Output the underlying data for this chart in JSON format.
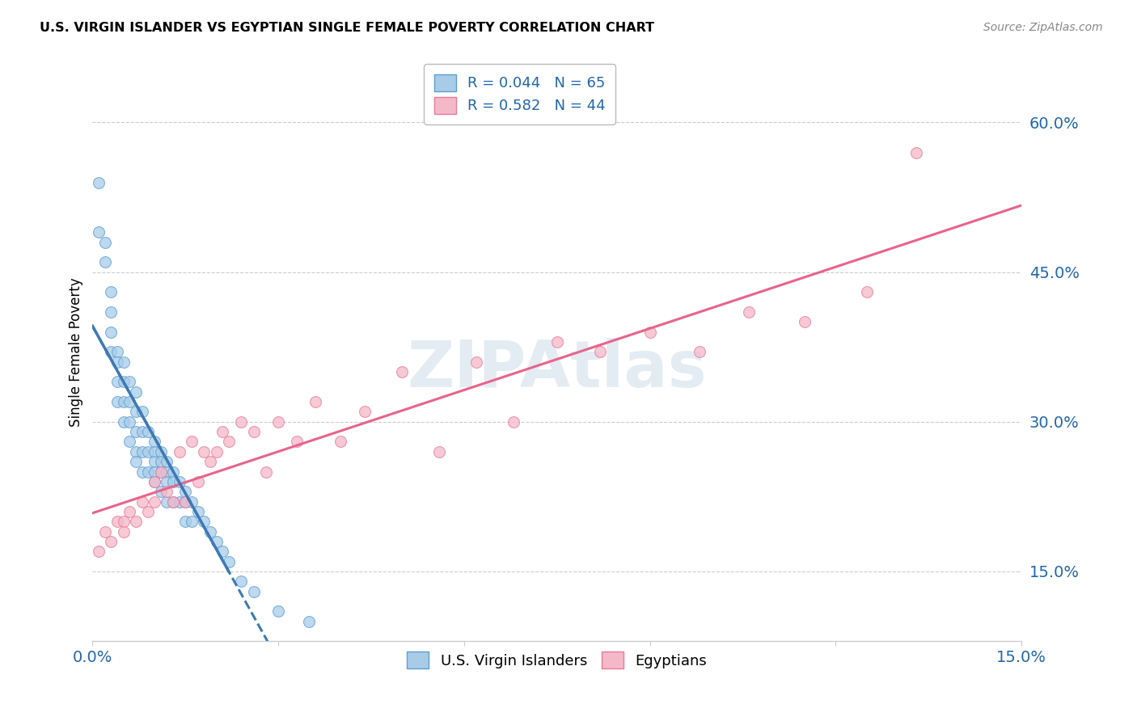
{
  "title": "U.S. VIRGIN ISLANDER VS EGYPTIAN SINGLE FEMALE POVERTY CORRELATION CHART",
  "source": "Source: ZipAtlas.com",
  "ylabel": "Single Female Poverty",
  "ytick_values": [
    0.15,
    0.3,
    0.45,
    0.6
  ],
  "ytick_labels": [
    "15.0%",
    "30.0%",
    "45.0%",
    "60.0%"
  ],
  "xlim": [
    0.0,
    0.15
  ],
  "ylim": [
    0.08,
    0.66
  ],
  "watermark": "ZIPAtlas",
  "legend_r1": "R = 0.044",
  "legend_n1": "N = 65",
  "legend_r2": "R = 0.582",
  "legend_n2": "N = 44",
  "color_blue_fill": "#a8cce8",
  "color_blue_edge": "#5b9fd4",
  "color_pink_fill": "#f5b8c8",
  "color_pink_edge": "#e87aa0",
  "color_blue_line": "#3d7ab5",
  "color_pink_line": "#e8648c",
  "color_blue_text": "#2166ac",
  "color_grid": "#cccccc",
  "blue_x": [
    0.001,
    0.001,
    0.002,
    0.002,
    0.003,
    0.003,
    0.003,
    0.003,
    0.004,
    0.004,
    0.004,
    0.004,
    0.005,
    0.005,
    0.005,
    0.005,
    0.006,
    0.006,
    0.006,
    0.006,
    0.007,
    0.007,
    0.007,
    0.007,
    0.007,
    0.008,
    0.008,
    0.008,
    0.008,
    0.009,
    0.009,
    0.009,
    0.01,
    0.01,
    0.01,
    0.01,
    0.01,
    0.011,
    0.011,
    0.011,
    0.011,
    0.012,
    0.012,
    0.012,
    0.012,
    0.013,
    0.013,
    0.013,
    0.014,
    0.014,
    0.015,
    0.015,
    0.015,
    0.016,
    0.016,
    0.017,
    0.018,
    0.019,
    0.02,
    0.021,
    0.022,
    0.024,
    0.026,
    0.03,
    0.035
  ],
  "blue_y": [
    0.54,
    0.49,
    0.48,
    0.46,
    0.43,
    0.41,
    0.39,
    0.37,
    0.37,
    0.36,
    0.34,
    0.32,
    0.36,
    0.34,
    0.32,
    0.3,
    0.34,
    0.32,
    0.3,
    0.28,
    0.33,
    0.31,
    0.29,
    0.27,
    0.26,
    0.31,
    0.29,
    0.27,
    0.25,
    0.29,
    0.27,
    0.25,
    0.28,
    0.27,
    0.26,
    0.25,
    0.24,
    0.27,
    0.26,
    0.25,
    0.23,
    0.26,
    0.25,
    0.24,
    0.22,
    0.25,
    0.24,
    0.22,
    0.24,
    0.22,
    0.23,
    0.22,
    0.2,
    0.22,
    0.2,
    0.21,
    0.2,
    0.19,
    0.18,
    0.17,
    0.16,
    0.14,
    0.13,
    0.11,
    0.1
  ],
  "pink_x": [
    0.001,
    0.002,
    0.003,
    0.004,
    0.005,
    0.005,
    0.006,
    0.007,
    0.008,
    0.009,
    0.01,
    0.01,
    0.011,
    0.012,
    0.013,
    0.014,
    0.015,
    0.016,
    0.017,
    0.018,
    0.019,
    0.02,
    0.021,
    0.022,
    0.024,
    0.026,
    0.028,
    0.03,
    0.033,
    0.036,
    0.04,
    0.044,
    0.05,
    0.056,
    0.062,
    0.068,
    0.075,
    0.082,
    0.09,
    0.098,
    0.106,
    0.115,
    0.125,
    0.133
  ],
  "pink_y": [
    0.17,
    0.19,
    0.18,
    0.2,
    0.2,
    0.19,
    0.21,
    0.2,
    0.22,
    0.21,
    0.24,
    0.22,
    0.25,
    0.23,
    0.22,
    0.27,
    0.22,
    0.28,
    0.24,
    0.27,
    0.26,
    0.27,
    0.29,
    0.28,
    0.3,
    0.29,
    0.25,
    0.3,
    0.28,
    0.32,
    0.28,
    0.31,
    0.35,
    0.27,
    0.36,
    0.3,
    0.38,
    0.37,
    0.39,
    0.37,
    0.41,
    0.4,
    0.43,
    0.57
  ]
}
